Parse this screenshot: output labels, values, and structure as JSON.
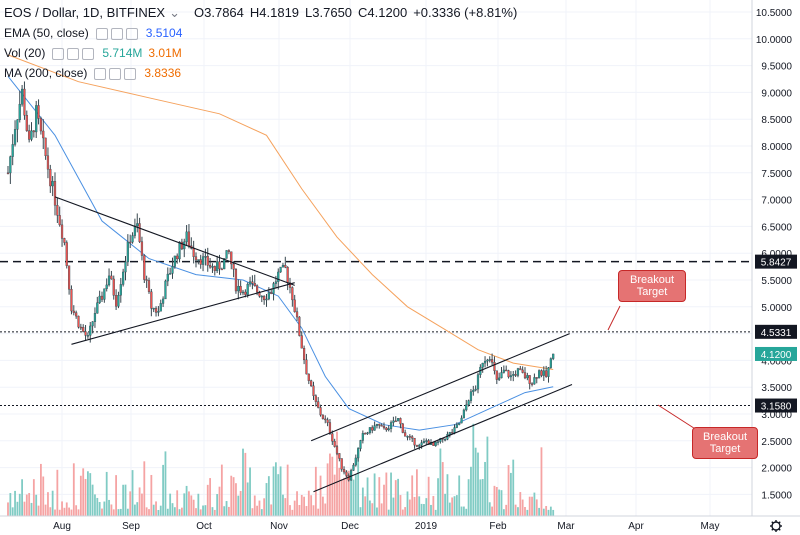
{
  "header": {
    "symbol": "EOS / Dollar, 1D, BITFINEX",
    "chevron_glyph": "⌄",
    "open": "O3.7864",
    "high": "H4.1819",
    "low": "L3.7650",
    "close": "C4.1200",
    "change": "+0.3336 (+8.81%)"
  },
  "indicators": [
    {
      "label": "EMA (50, close)",
      "value": "3.5104",
      "color": "#2962ff"
    },
    {
      "label": "Vol (20)",
      "value": "5.714M",
      "value2": "3.01M",
      "color": "#26a69a"
    },
    {
      "label": "MA (200, close)",
      "value": "3.8336",
      "color": "#ef6c00"
    }
  ],
  "price_axis": {
    "ticks": [
      "10.5000",
      "10.0000",
      "9.5000",
      "9.0000",
      "8.5000",
      "8.0000",
      "7.5000",
      "7.0000",
      "6.5000",
      "6.0000",
      "5.5000",
      "5.0000",
      "4.5000",
      "4.0000",
      "3.5000",
      "3.0000",
      "2.5000",
      "2.0000",
      "1.5000"
    ],
    "tick_values": [
      10.5,
      10,
      9.5,
      9,
      8.5,
      8,
      7.5,
      7,
      6.5,
      6,
      5.5,
      5,
      4.5,
      4,
      3.5,
      3,
      2.5,
      2,
      1.5
    ],
    "badges": [
      {
        "label": "5.8427",
        "value": 5.8427,
        "color": "#131722"
      },
      {
        "label": "4.5331",
        "value": 4.5331,
        "color": "#131722"
      },
      {
        "label": "4.1200",
        "value": 4.12,
        "color": "#26a69a"
      },
      {
        "label": "3.1580",
        "value": 3.158,
        "color": "#131722"
      }
    ]
  },
  "time_axis": {
    "labels": [
      "Aug",
      "Sep",
      "Oct",
      "Nov",
      "Dec",
      "2019",
      "Feb",
      "Mar",
      "Apr",
      "May"
    ],
    "settings_icon": "gear-icon"
  },
  "annotations": [
    {
      "text_line1": "Breakout",
      "text_line2": "Target",
      "fill": "#e57373"
    },
    {
      "text_line1": "Breakout",
      "text_line2": "Target",
      "fill": "#e57373"
    }
  ],
  "chart_data": {
    "type": "candlestick",
    "symbol": "EOS / Dollar",
    "interval": "1D",
    "exchange": "BITFINEX",
    "y_range": [
      1.0,
      10.6
    ],
    "y_scale": "linear",
    "horizontal_levels": [
      5.8427,
      4.5331,
      3.158
    ],
    "months": [
      "Aug",
      "Sep",
      "Oct",
      "Nov",
      "Dec",
      "2019",
      "Feb",
      "Mar",
      "Apr",
      "May"
    ],
    "price_path": [
      [
        0,
        7.5
      ],
      [
        3,
        8.4
      ],
      [
        6,
        9.0
      ],
      [
        9,
        8.0
      ],
      [
        12,
        8.6
      ],
      [
        16,
        7.8
      ],
      [
        20,
        7.0
      ],
      [
        24,
        6.2
      ],
      [
        27,
        5.0
      ],
      [
        31,
        4.6
      ],
      [
        34,
        4.4
      ],
      [
        37,
        4.9
      ],
      [
        40,
        5.2
      ],
      [
        43,
        5.6
      ],
      [
        46,
        5.1
      ],
      [
        49,
        5.7
      ],
      [
        52,
        6.3
      ],
      [
        55,
        6.5
      ],
      [
        58,
        5.6
      ],
      [
        61,
        5.0
      ],
      [
        64,
        4.9
      ],
      [
        67,
        5.4
      ],
      [
        70,
        5.8
      ],
      [
        73,
        6.1
      ],
      [
        76,
        6.3
      ],
      [
        79,
        6.0
      ],
      [
        82,
        5.9
      ],
      [
        85,
        5.8
      ],
      [
        88,
        5.7
      ],
      [
        91,
        5.8
      ],
      [
        94,
        6.0
      ],
      [
        97,
        5.4
      ],
      [
        100,
        5.3
      ],
      [
        103,
        5.4
      ],
      [
        106,
        5.3
      ],
      [
        109,
        5.2
      ],
      [
        112,
        5.3
      ],
      [
        115,
        5.6
      ],
      [
        118,
        5.7
      ],
      [
        121,
        5.2
      ],
      [
        124,
        4.5
      ],
      [
        127,
        3.8
      ],
      [
        130,
        3.3
      ],
      [
        133,
        3.0
      ],
      [
        136,
        2.8
      ],
      [
        139,
        2.4
      ],
      [
        142,
        2.0
      ],
      [
        145,
        1.8
      ],
      [
        148,
        2.2
      ],
      [
        151,
        2.6
      ],
      [
        154,
        2.7
      ],
      [
        157,
        2.8
      ],
      [
        160,
        2.7
      ],
      [
        163,
        2.8
      ],
      [
        166,
        2.9
      ],
      [
        169,
        2.6
      ],
      [
        172,
        2.5
      ],
      [
        175,
        2.4
      ],
      [
        178,
        2.5
      ],
      [
        181,
        2.4
      ],
      [
        184,
        2.5
      ],
      [
        187,
        2.6
      ],
      [
        190,
        2.7
      ],
      [
        193,
        2.9
      ],
      [
        196,
        3.3
      ],
      [
        199,
        3.5
      ],
      [
        202,
        4.0
      ],
      [
        205,
        4.1
      ],
      [
        208,
        3.6
      ],
      [
        211,
        3.8
      ],
      [
        214,
        3.7
      ],
      [
        217,
        3.8
      ],
      [
        220,
        3.7
      ],
      [
        223,
        3.6
      ],
      [
        226,
        3.8
      ],
      [
        229,
        3.7
      ],
      [
        232,
        4.12
      ]
    ],
    "ema50_path": [
      [
        0,
        9.3
      ],
      [
        20,
        8.2
      ],
      [
        40,
        6.6
      ],
      [
        60,
        5.9
      ],
      [
        80,
        5.6
      ],
      [
        100,
        5.5
      ],
      [
        115,
        5.2
      ],
      [
        125,
        4.6
      ],
      [
        135,
        3.7
      ],
      [
        145,
        3.1
      ],
      [
        160,
        2.8
      ],
      [
        175,
        2.7
      ],
      [
        190,
        2.8
      ],
      [
        205,
        3.1
      ],
      [
        220,
        3.4
      ],
      [
        232,
        3.51
      ]
    ],
    "ma200_path": [
      [
        0,
        9.7
      ],
      [
        30,
        9.2
      ],
      [
        60,
        8.9
      ],
      [
        90,
        8.6
      ],
      [
        110,
        8.2
      ],
      [
        125,
        7.2
      ],
      [
        140,
        6.3
      ],
      [
        155,
        5.6
      ],
      [
        170,
        5.0
      ],
      [
        185,
        4.6
      ],
      [
        200,
        4.2
      ],
      [
        215,
        3.95
      ],
      [
        232,
        3.83
      ]
    ],
    "trendlines": {
      "triangle_upper": [
        [
          20,
          7.05
        ],
        [
          122,
          5.4
        ]
      ],
      "triangle_lower": [
        [
          27,
          4.3
        ],
        [
          122,
          5.45
        ]
      ],
      "channel_upper": [
        [
          129,
          2.5
        ],
        [
          239,
          4.5
        ]
      ],
      "channel_lower": [
        [
          130,
          1.55
        ],
        [
          240,
          3.55
        ]
      ]
    },
    "volume_note": "volume histogram at bottom of pane, red/green per candle"
  }
}
